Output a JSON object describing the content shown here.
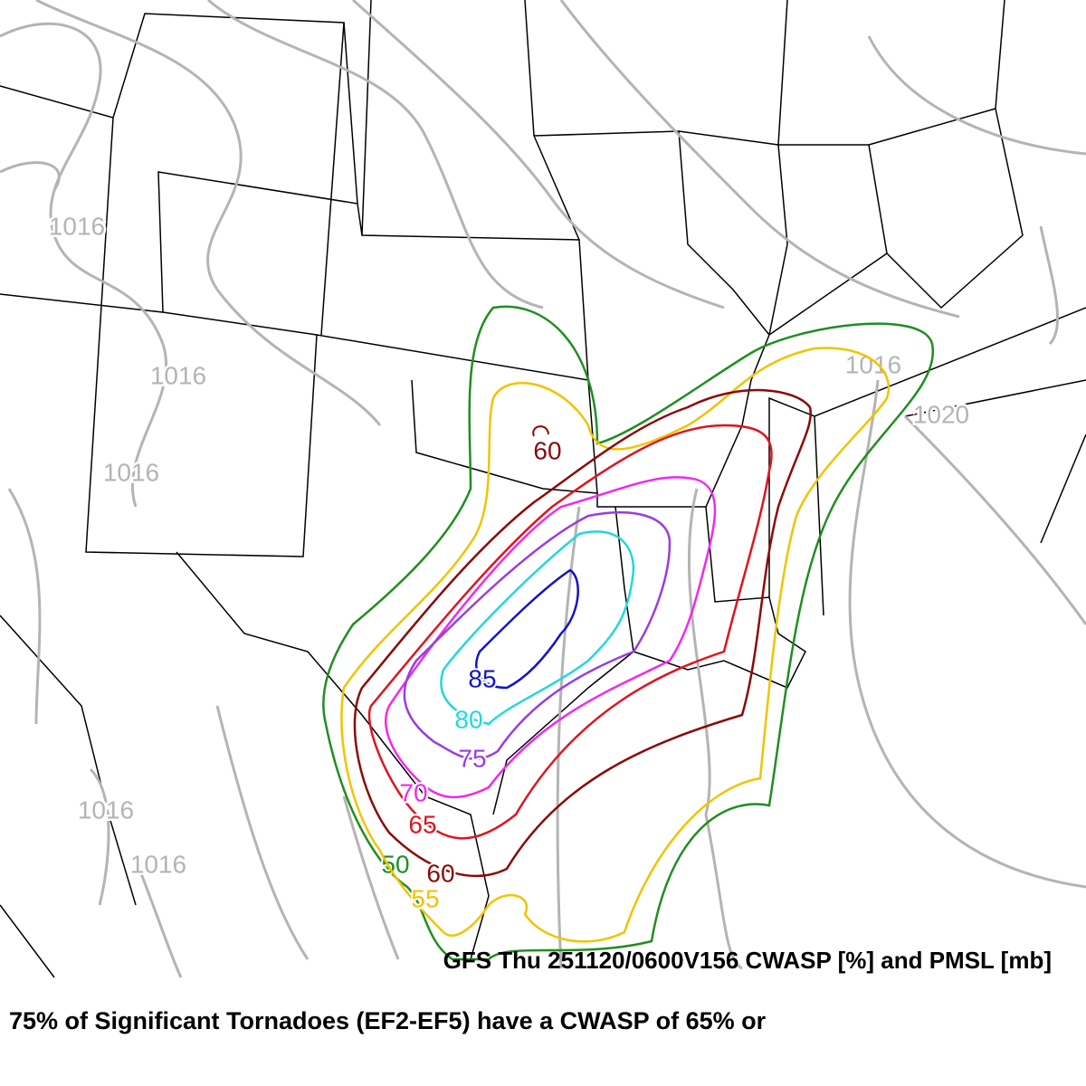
{
  "map": {
    "type": "contour",
    "pressure_labels": [
      1016,
      1016,
      1016,
      1016,
      1016,
      1016,
      1020
    ],
    "pressure_color": "#b4b4b4",
    "cwasp_contours": [
      {
        "level": 50,
        "color": "#1f8f1f"
      },
      {
        "level": 55,
        "color": "#f0c400"
      },
      {
        "level": 60,
        "color": "#8b0a0a"
      },
      {
        "level": 65,
        "color": "#e0141e"
      },
      {
        "level": 70,
        "color": "#f028f0"
      },
      {
        "level": 75,
        "color": "#9a3ce0"
      },
      {
        "level": 80,
        "color": "#22d8dc"
      },
      {
        "level": 85,
        "color": "#1414c8"
      }
    ],
    "extra_labels": [
      {
        "level": 60,
        "color": "#8b0a0a"
      }
    ]
  },
  "caption": {
    "line1": "GFS Thu 251120/0600V156 CWASP [%] and PMSL [mb]",
    "line2": "75% of Significant Tornadoes (EF2-EF5) have a CWASP of 65% or"
  }
}
